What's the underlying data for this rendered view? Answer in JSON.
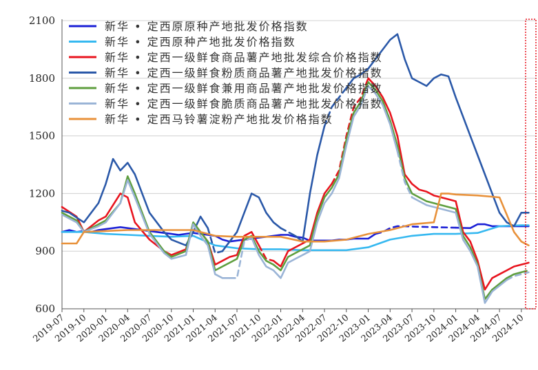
{
  "chart_data": {
    "type": "line",
    "title": "",
    "xlabel": "",
    "ylabel": "",
    "ylim": [
      600,
      2100
    ],
    "y_ticks": [
      600,
      900,
      1200,
      1500,
      1800,
      2100
    ],
    "x_ticks": [
      "2019-07",
      "2019-10",
      "2020-01",
      "2020-04",
      "2020-07",
      "2020-10",
      "2021-01",
      "2021-04",
      "2021-07",
      "2021-10",
      "2022-01",
      "2022-04",
      "2022-07",
      "2022-10",
      "2023-01",
      "2023-04",
      "2023-07",
      "2023-10",
      "2024-01",
      "2024-04",
      "2024-07",
      "2024-10"
    ],
    "grid": "horizontal",
    "legend_position": "top-left",
    "annotation": "dotted red box at right edge (latest period)",
    "series": [
      {
        "name": "新华 • 定西原原种产地批发价格指数",
        "color": "#1a1fd6",
        "dashed_segments": [
          [
            33,
            35
          ],
          [
            43,
            54
          ]
        ],
        "x": [
          "2019-07",
          "2019-08",
          "2019-09",
          "2019-10",
          "2019-11",
          "2019-12",
          "2020-01",
          "2020-02",
          "2020-03",
          "2020-04",
          "2020-05",
          "2020-06",
          "2020-07",
          "2020-08",
          "2020-09",
          "2020-10",
          "2020-11",
          "2020-12",
          "2021-01",
          "2021-02",
          "2021-03",
          "2021-04",
          "2021-05",
          "2021-06",
          "2021-07",
          "2021-08",
          "2021-09",
          "2021-10",
          "2021-11",
          "2021-12",
          "2022-01",
          "2022-02",
          "2022-03",
          "2022-04",
          "2022-05",
          "2022-06",
          "2022-07",
          "2022-08",
          "2022-09",
          "2022-10",
          "2022-11",
          "2022-12",
          "2023-01",
          "2023-02",
          "2023-03",
          "2023-04",
          "2023-05",
          "2023-06",
          "2023-07",
          "2023-08",
          "2023-09",
          "2023-10",
          "2023-11",
          "2023-12",
          "2024-01",
          "2024-02",
          "2024-03",
          "2024-04",
          "2024-05",
          "2024-06",
          "2024-07",
          "2024-08",
          "2024-09",
          "2024-10",
          "2024-11"
        ],
        "values": [
          1000,
          1010,
          1000,
          1005,
          1000,
          1010,
          1015,
          1020,
          1025,
          1020,
          1015,
          1010,
          1005,
          1000,
          995,
          990,
          985,
          990,
          995,
          990,
          985,
          980,
          960,
          950,
          955,
          960,
          965,
          970,
          975,
          980,
          985,
          985,
          975,
          970,
          955,
          955,
          955,
          955,
          960,
          960,
          965,
          965,
          965,
          990,
          1000,
          1020,
          1030,
          1030,
          1028,
          1027,
          1026,
          1025,
          1024,
          1023,
          1022,
          1021,
          1020,
          1040,
          1040,
          1030,
          1030,
          1030,
          1030,
          1030,
          1030
        ]
      },
      {
        "name": "新华 • 定西原种产地批发价格指数",
        "color": "#35b8f0",
        "dashed_segments": [],
        "x": [
          "2019-07",
          "2019-10",
          "2020-01",
          "2020-04",
          "2020-07",
          "2020-10",
          "2021-01",
          "2021-04",
          "2021-07",
          "2021-10",
          "2022-01",
          "2022-04",
          "2022-07",
          "2022-10",
          "2023-01",
          "2023-04",
          "2023-07",
          "2023-10",
          "2024-01",
          "2024-04",
          "2024-07",
          "2024-10",
          "2024-11"
        ],
        "values": [
          1000,
          1000,
          990,
          985,
          980,
          975,
          980,
          930,
          915,
          910,
          910,
          905,
          905,
          905,
          920,
          960,
          980,
          990,
          990,
          995,
          1030,
          1035,
          1035
        ]
      },
      {
        "name": "新华 • 定西一级鲜食商品薯产地批发综合价格指数",
        "color": "#e8141e",
        "dashed_segments": [
          [
            21,
            23
          ],
          [
            31,
            36
          ],
          [
            60,
            63
          ]
        ],
        "x": [
          "2019-07",
          "2019-09",
          "2019-10",
          "2019-12",
          "2020-01",
          "2020-03",
          "2020-04",
          "2020-05",
          "2020-07",
          "2020-09",
          "2020-10",
          "2020-12",
          "2021-01",
          "2021-02",
          "2021-03",
          "2021-04",
          "2021-05",
          "2021-06",
          "2021-07",
          "2021-08",
          "2021-09",
          "2021-10",
          "2021-11",
          "2021-12",
          "2022-01",
          "2022-02",
          "2022-03",
          "2022-04",
          "2022-05",
          "2022-06",
          "2022-07",
          "2022-08",
          "2022-09",
          "2022-10",
          "2022-11",
          "2022-12",
          "2023-01",
          "2023-02",
          "2023-03",
          "2023-04",
          "2023-05",
          "2023-06",
          "2023-07",
          "2023-08",
          "2023-09",
          "2023-10",
          "2023-11",
          "2023-12",
          "2024-01",
          "2024-02",
          "2024-03",
          "2024-04",
          "2024-05",
          "2024-06",
          "2024-07",
          "2024-08",
          "2024-09",
          "2024-10",
          "2024-11"
        ],
        "values": [
          1130,
          1080,
          1000,
          1060,
          1080,
          1200,
          1180,
          1050,
          960,
          900,
          880,
          910,
          1040,
          1000,
          950,
          830,
          850,
          870,
          880,
          980,
          1000,
          930,
          860,
          850,
          820,
          900,
          920,
          940,
          960,
          1100,
          1200,
          1250,
          1320,
          1500,
          1650,
          1700,
          1800,
          1760,
          1700,
          1620,
          1500,
          1300,
          1250,
          1220,
          1210,
          1190,
          1180,
          1170,
          1160,
          1000,
          950,
          850,
          700,
          760,
          780,
          800,
          820,
          830,
          840
        ]
      },
      {
        "name": "新华 • 定西一级鲜食粉质商品薯产地批发价格指数",
        "color": "#2a58a8",
        "dashed_segments": [
          [
            16,
            18
          ],
          [
            26,
            28
          ],
          [
            32,
            35
          ]
        ],
        "x": [
          "2019-07",
          "2019-08",
          "2019-10",
          "2019-12",
          "2020-01",
          "2020-02",
          "2020-03",
          "2020-04",
          "2020-05",
          "2020-06",
          "2020-07",
          "2020-09",
          "2020-10",
          "2020-12",
          "2021-01",
          "2021-02",
          "2021-03",
          "2021-04",
          "2021-05",
          "2021-06",
          "2021-07",
          "2021-08",
          "2021-09",
          "2021-10",
          "2021-11",
          "2021-12",
          "2022-01",
          "2022-02",
          "2022-03",
          "2022-04",
          "2022-05",
          "2022-06",
          "2022-07",
          "2022-08",
          "2022-09",
          "2022-10",
          "2022-11",
          "2022-12",
          "2023-01",
          "2023-02",
          "2023-03",
          "2023-04",
          "2023-05",
          "2023-06",
          "2023-07",
          "2023-08",
          "2023-09",
          "2023-10",
          "2023-11",
          "2023-12",
          "2024-01",
          "2024-02",
          "2024-03",
          "2024-04",
          "2024-05",
          "2024-06",
          "2024-07",
          "2024-08",
          "2024-09",
          "2024-10",
          "2024-11"
        ],
        "values": [
          1110,
          1100,
          1050,
          1150,
          1250,
          1380,
          1320,
          1360,
          1300,
          1200,
          1100,
          1000,
          960,
          930,
          1000,
          1080,
          1020,
          890,
          900,
          950,
          1000,
          1100,
          1200,
          1180,
          1100,
          1050,
          1020,
          1000,
          980,
          950,
          1200,
          1400,
          1550,
          1650,
          1700,
          1750,
          1800,
          1820,
          1850,
          1900,
          1950,
          2000,
          2030,
          1900,
          1800,
          1780,
          1760,
          1800,
          1820,
          1810,
          1700,
          1600,
          1500,
          1400,
          1300,
          1200,
          1100,
          1050,
          1030,
          1100,
          1100
        ]
      },
      {
        "name": "新华 • 定西一级鲜食兼用商品薯产地批发价格指数",
        "color": "#5e9e3e",
        "dashed_segments": [
          [
            57,
            60
          ]
        ],
        "x": [
          "2019-07",
          "2019-09",
          "2019-10",
          "2019-12",
          "2020-01",
          "2020-03",
          "2020-04",
          "2020-05",
          "2020-07",
          "2020-09",
          "2020-10",
          "2020-12",
          "2021-01",
          "2021-02",
          "2021-03",
          "2021-04",
          "2021-05",
          "2021-06",
          "2021-07",
          "2021-08",
          "2021-09",
          "2021-10",
          "2021-11",
          "2021-12",
          "2022-01",
          "2022-02",
          "2022-03",
          "2022-04",
          "2022-05",
          "2022-06",
          "2022-07",
          "2022-08",
          "2022-09",
          "2022-10",
          "2022-11",
          "2022-12",
          "2023-01",
          "2023-02",
          "2023-03",
          "2023-04",
          "2023-05",
          "2023-06",
          "2023-07",
          "2023-08",
          "2023-09",
          "2023-10",
          "2023-11",
          "2023-12",
          "2024-01",
          "2024-02",
          "2024-03",
          "2024-04",
          "2024-05",
          "2024-06",
          "2024-07",
          "2024-08",
          "2024-09",
          "2024-10",
          "2024-11"
        ],
        "values": [
          1100,
          1060,
          1000,
          1040,
          1060,
          1150,
          1290,
          1200,
          1000,
          900,
          870,
          900,
          1050,
          1000,
          950,
          800,
          820,
          840,
          860,
          960,
          980,
          900,
          850,
          830,
          800,
          870,
          890,
          910,
          930,
          1080,
          1180,
          1230,
          1300,
          1480,
          1620,
          1680,
          1780,
          1740,
          1680,
          1580,
          1450,
          1280,
          1200,
          1180,
          1160,
          1150,
          1140,
          1130,
          1120,
          980,
          920,
          830,
          650,
          700,
          730,
          760,
          780,
          790,
          800
        ]
      },
      {
        "name": "新华 • 定西一级鲜食脆质商品薯产地批发价格指数",
        "color": "#9ab4d6",
        "dashed_segments": [
          [
            17,
            20
          ],
          [
            40,
            42
          ],
          [
            55,
            58
          ]
        ],
        "x": [
          "2019-07",
          "2019-09",
          "2019-10",
          "2019-12",
          "2020-01",
          "2020-03",
          "2020-04",
          "2020-05",
          "2020-07",
          "2020-09",
          "2020-10",
          "2020-12",
          "2021-01",
          "2021-02",
          "2021-03",
          "2021-04",
          "2021-05",
          "2021-06",
          "2021-07",
          "2021-08",
          "2021-09",
          "2021-10",
          "2021-11",
          "2021-12",
          "2022-01",
          "2022-02",
          "2022-03",
          "2022-04",
          "2022-05",
          "2022-06",
          "2022-07",
          "2022-08",
          "2022-09",
          "2022-10",
          "2022-11",
          "2022-12",
          "2023-01",
          "2023-02",
          "2023-03",
          "2023-04",
          "2023-05",
          "2023-06",
          "2023-07",
          "2023-08",
          "2023-09",
          "2023-10",
          "2023-11",
          "2023-12",
          "2024-01",
          "2024-02",
          "2024-03",
          "2024-04",
          "2024-05",
          "2024-06",
          "2024-07",
          "2024-08",
          "2024-09",
          "2024-10",
          "2024-11"
        ],
        "values": [
          1090,
          1050,
          1000,
          1030,
          1050,
          1150,
          1270,
          1180,
          990,
          890,
          860,
          880,
          1040,
          980,
          930,
          780,
          760,
          760,
          760,
          950,
          970,
          880,
          820,
          800,
          760,
          840,
          860,
          880,
          900,
          1050,
          1150,
          1200,
          1280,
          1450,
          1600,
          1660,
          1760,
          1720,
          1660,
          1560,
          1420,
          1260,
          1180,
          1160,
          1140,
          1130,
          1120,
          1110,
          1100,
          960,
          900,
          820,
          630,
          690,
          720,
          750,
          770,
          780,
          790
        ]
      },
      {
        "name": "新华 • 定西马铃薯淀粉产地批发价格指数",
        "color": "#e8913a",
        "dashed_segments": [],
        "x": [
          "2019-07",
          "2019-09",
          "2019-10",
          "2020-01",
          "2020-04",
          "2020-07",
          "2020-10",
          "2021-01",
          "2021-04",
          "2021-07",
          "2021-10",
          "2022-01",
          "2022-04",
          "2022-07",
          "2022-10",
          "2022-12",
          "2023-01",
          "2023-04",
          "2023-07",
          "2023-10",
          "2023-11",
          "2023-12",
          "2024-01",
          "2024-04",
          "2024-07",
          "2024-09",
          "2024-10",
          "2024-11"
        ],
        "values": [
          940,
          940,
          1000,
          1005,
          1010,
          1010,
          1010,
          1010,
          980,
          975,
          975,
          975,
          950,
          950,
          960,
          980,
          990,
          1010,
          1040,
          1050,
          1200,
          1200,
          1195,
          1190,
          1180,
          1000,
          950,
          930
        ]
      }
    ]
  }
}
